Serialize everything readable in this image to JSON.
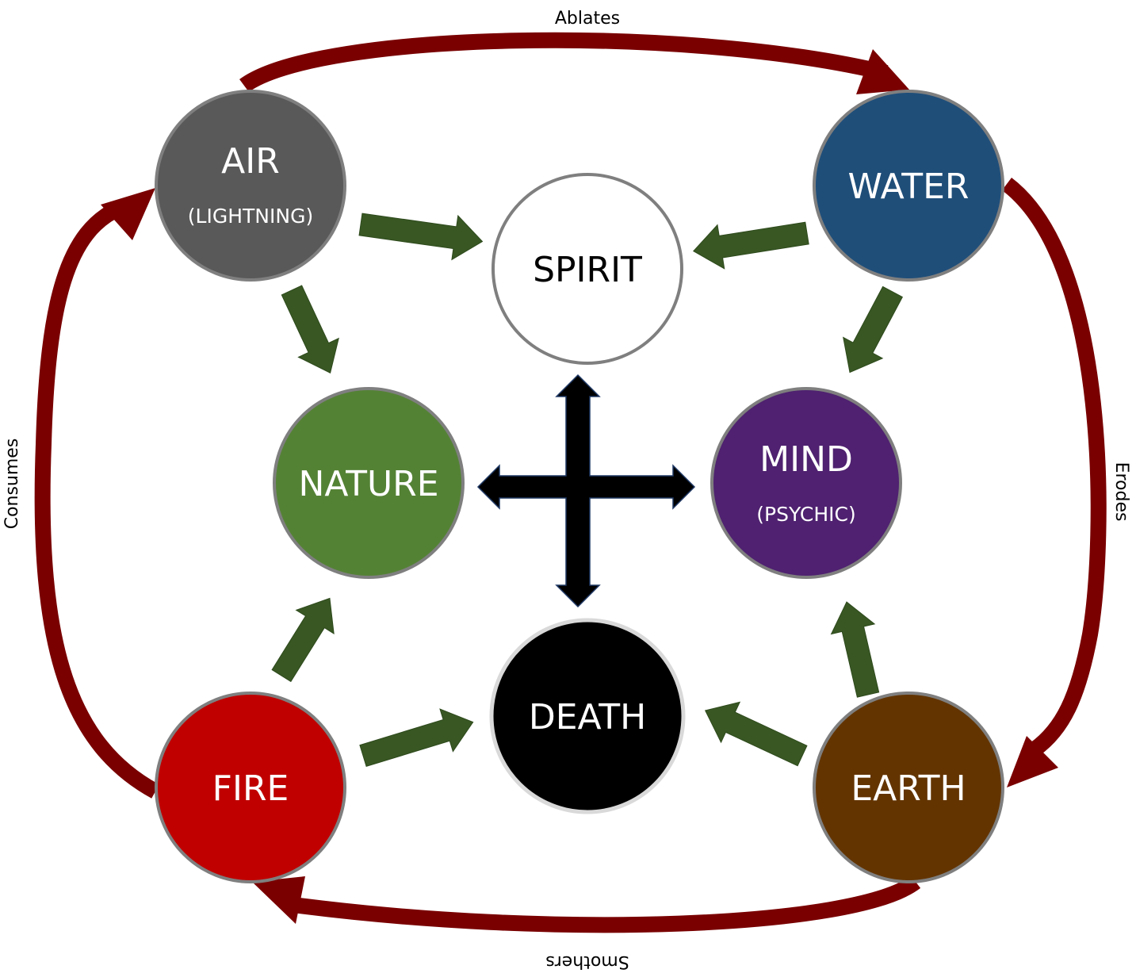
{
  "nodes": {
    "air": {
      "label": "AIR",
      "sublabel": "(LIGHTNING)",
      "fill": "#595959"
    },
    "water": {
      "label": "WATER",
      "fill": "#1f4e79"
    },
    "spirit": {
      "label": "SPIRIT",
      "fill": "#ffffff"
    },
    "nature": {
      "label": "NATURE",
      "fill": "#548235"
    },
    "mind": {
      "label": "MIND",
      "sublabel": "(PSYCHIC)",
      "fill": "#4f2170"
    },
    "death": {
      "label": "DEATH",
      "fill": "#000000"
    },
    "fire": {
      "label": "FIRE",
      "fill": "#c00000"
    },
    "earth": {
      "label": "EARTH",
      "fill": "#633400"
    }
  },
  "cycle_labels": {
    "ablates": "Ablates",
    "erodes": "Erodes",
    "smothers": "Smothers",
    "consumes": "Consumes"
  },
  "colors": {
    "cycle_arrow": "#7a0000",
    "flow_arrow": "#385723",
    "node_border": "#7f7f7f",
    "cross_arrow": "#000000"
  }
}
